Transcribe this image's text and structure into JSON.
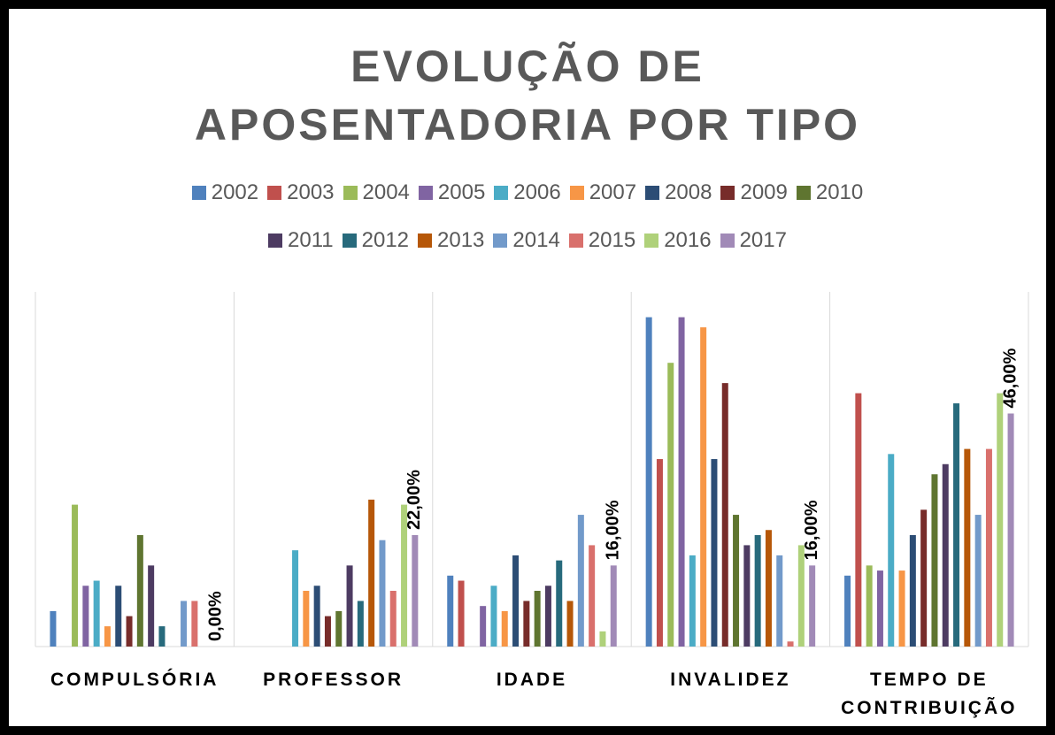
{
  "chart_data": {
    "type": "bar",
    "title": "EVOLUÇÃO DE APOSENTADORIA POR TIPO",
    "categories": [
      "COMPULSÓRIA",
      "PROFESSOR",
      "IDADE",
      "INVALIDEZ",
      "TEMPO DE CONTRIBUIÇÃO"
    ],
    "ylim": [
      0,
      70
    ],
    "legend": "top",
    "series": [
      {
        "name": "2002",
        "color": "#4f81bd",
        "values": [
          7,
          0,
          14,
          65,
          14
        ]
      },
      {
        "name": "2003",
        "color": "#c0504d",
        "values": [
          0,
          0,
          13,
          37,
          50
        ]
      },
      {
        "name": "2004",
        "color": "#9bbb59",
        "values": [
          28,
          0,
          0,
          56,
          16
        ]
      },
      {
        "name": "2005",
        "color": "#8064a2",
        "values": [
          12,
          0,
          8,
          65,
          15
        ]
      },
      {
        "name": "2006",
        "color": "#4bacc6",
        "values": [
          13,
          19,
          12,
          18,
          38
        ]
      },
      {
        "name": "2007",
        "color": "#f79646",
        "values": [
          4,
          11,
          7,
          63,
          15
        ]
      },
      {
        "name": "2008",
        "color": "#2c4d75",
        "values": [
          12,
          12,
          18,
          37,
          22
        ]
      },
      {
        "name": "2009",
        "color": "#772c2a",
        "values": [
          6,
          6,
          9,
          52,
          27
        ]
      },
      {
        "name": "2010",
        "color": "#5f7530",
        "values": [
          22,
          7,
          11,
          26,
          34
        ]
      },
      {
        "name": "2011",
        "color": "#4d3b62",
        "values": [
          16,
          16,
          12,
          20,
          36
        ]
      },
      {
        "name": "2012",
        "color": "#276a7c",
        "values": [
          4,
          9,
          17,
          22,
          48
        ]
      },
      {
        "name": "2013",
        "color": "#b65708",
        "values": [
          0,
          29,
          9,
          23,
          39
        ]
      },
      {
        "name": "2014",
        "color": "#729aca",
        "values": [
          9,
          21,
          26,
          18,
          26
        ]
      },
      {
        "name": "2015",
        "color": "#d9706c",
        "values": [
          9,
          11,
          20,
          1,
          39
        ]
      },
      {
        "name": "2016",
        "color": "#afd17a",
        "values": [
          0,
          28,
          3,
          20,
          50
        ]
      },
      {
        "name": "2017",
        "color": "#a18ab7",
        "values": [
          0,
          22,
          16,
          16,
          46
        ],
        "value_labels": [
          "0,00%",
          "22,00%",
          "16,00%",
          "16,00%",
          "46,00%"
        ]
      }
    ]
  }
}
